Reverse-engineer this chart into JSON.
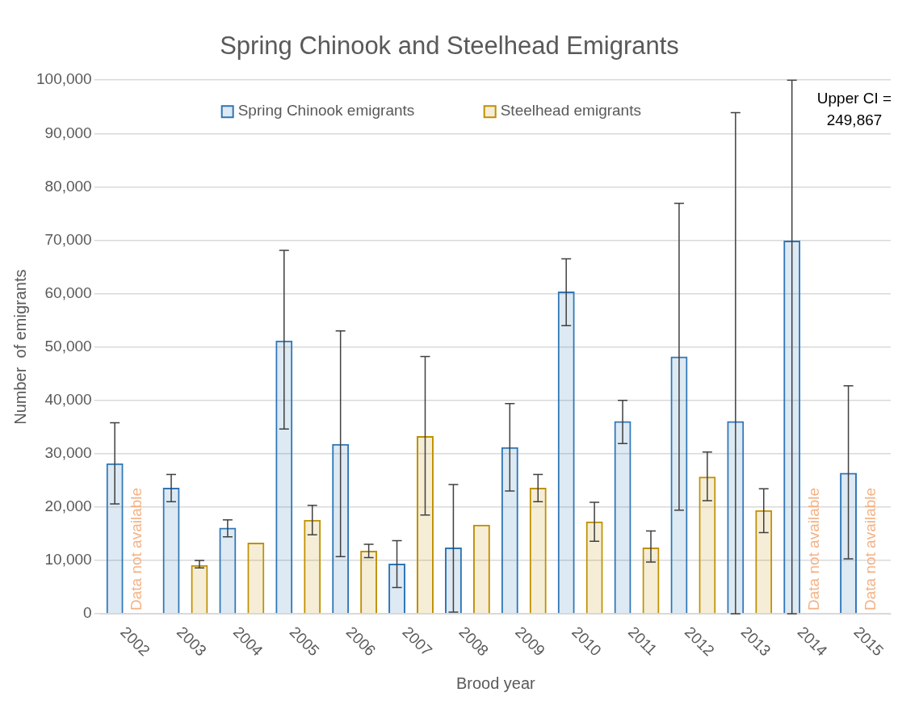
{
  "chart_data": {
    "type": "bar",
    "title": "Spring Chinook and Steelhead Emigrants",
    "xlabel": "Brood year",
    "ylabel": "Number  of emigrants",
    "categories": [
      "2002",
      "2003",
      "2004",
      "2005",
      "2006",
      "2007",
      "2008",
      "2009",
      "2010",
      "2011",
      "2012",
      "2013",
      "2014",
      "2015"
    ],
    "series": [
      {
        "name": "Spring Chinook emigrants",
        "color": "#2e75b6",
        "values": [
          28200,
          23600,
          16100,
          51200,
          31800,
          9400,
          12400,
          31200,
          60400,
          36100,
          48200,
          36100,
          69900,
          26400
        ],
        "errors": [
          [
            20600,
            35800
          ],
          [
            21000,
            26100
          ],
          [
            14400,
            17600
          ],
          [
            34600,
            68100
          ],
          [
            10700,
            53000
          ],
          [
            4900,
            13700
          ],
          [
            300,
            24200
          ],
          [
            23000,
            39400
          ],
          [
            54000,
            66500
          ],
          [
            31900,
            40000
          ],
          [
            19400,
            76900
          ],
          [
            0,
            93900
          ],
          [
            0,
            100000
          ],
          [
            10300,
            42700
          ]
        ]
      },
      {
        "name": "Steelhead emigrants",
        "color": "#bf9000",
        "values": [
          null,
          9100,
          13300,
          17600,
          11800,
          33300,
          16700,
          23600,
          17300,
          12400,
          25700,
          19400,
          null,
          null
        ],
        "errors": [
          null,
          [
            8600,
            10000
          ],
          null,
          [
            14800,
            20300
          ],
          [
            10500,
            13000
          ],
          [
            18500,
            48200
          ],
          null,
          [
            21000,
            26100
          ],
          [
            13600,
            20900
          ],
          [
            9700,
            15500
          ],
          [
            21200,
            30300
          ],
          [
            15200,
            23400
          ],
          null,
          null
        ]
      }
    ],
    "ylim": [
      0,
      100000
    ],
    "yticks": [
      {
        "value": 0,
        "label": "0"
      },
      {
        "value": 10000,
        "label": "10,000"
      },
      {
        "value": 20000,
        "label": "20,000"
      },
      {
        "value": 30000,
        "label": "30,000"
      },
      {
        "value": 40000,
        "label": "40,000"
      },
      {
        "value": 50000,
        "label": "50,000"
      },
      {
        "value": 60000,
        "label": "60,000"
      },
      {
        "value": 70000,
        "label": "70,000"
      },
      {
        "value": 80000,
        "label": "80,000"
      },
      {
        "value": 90000,
        "label": "90,000"
      },
      {
        "value": 100000,
        "label": "100,000"
      }
    ],
    "grid": "y",
    "legend": "top",
    "annotations": [
      {
        "text": "Data not available",
        "x": "2002",
        "y": 0
      },
      {
        "text": "Data not available",
        "x": "2014",
        "y": 0
      },
      {
        "text": "Data not available",
        "x": "2015",
        "y": 0
      },
      "Upper CI =\n249,867"
    ]
  }
}
